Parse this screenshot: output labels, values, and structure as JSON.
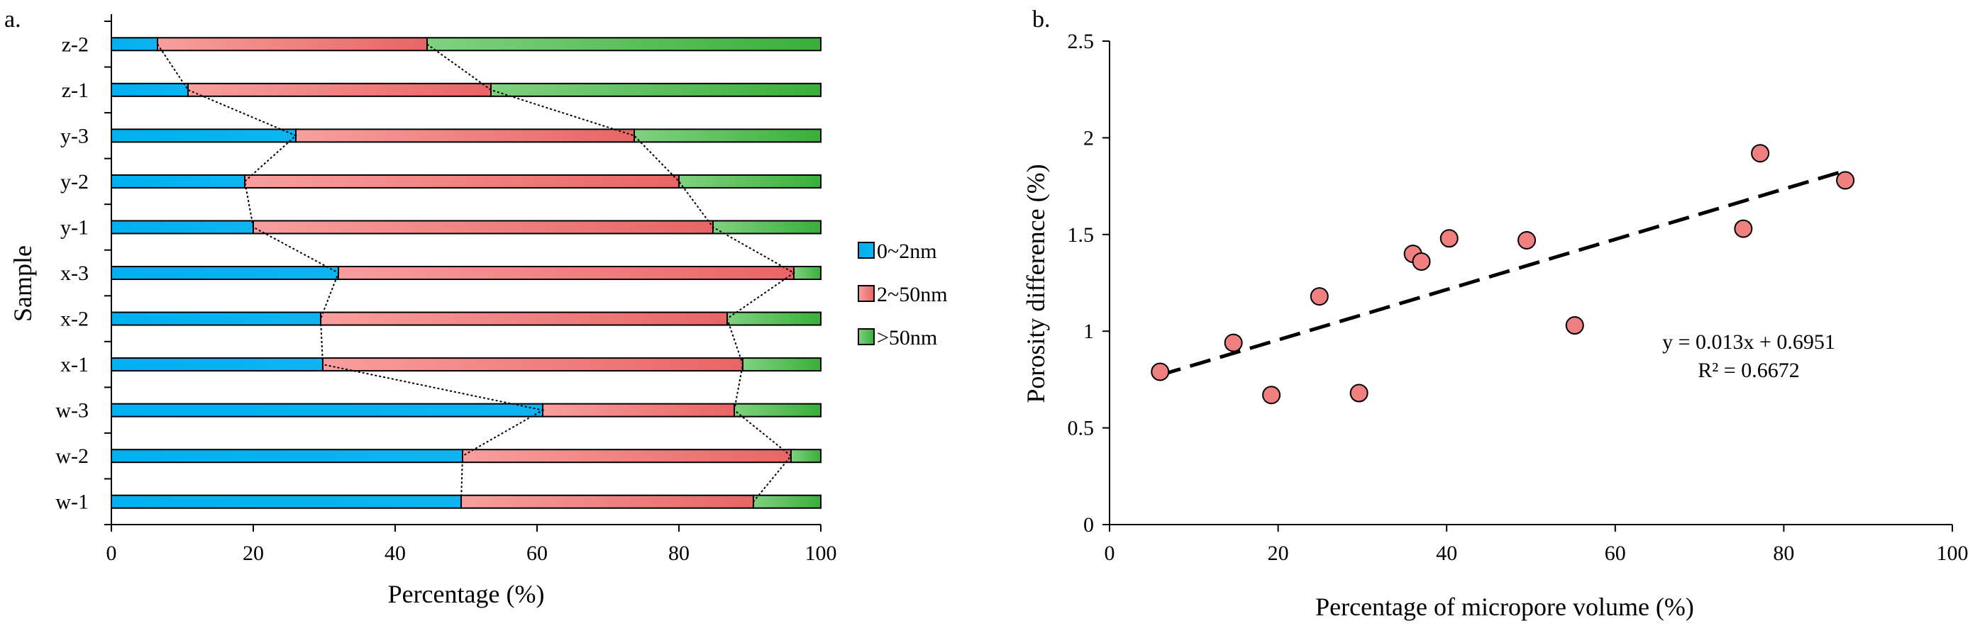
{
  "chart_data": [
    {
      "type": "bar",
      "stacked": true,
      "orientation": "horizontal",
      "panel_label": "a.",
      "title": "",
      "xlabel": "Percentage (%)",
      "ylabel": "Sample",
      "xlim": [
        0,
        100
      ],
      "xticks": [
        "0",
        "20",
        "40",
        "60",
        "80",
        "100"
      ],
      "categories": [
        "z-2",
        "z-1",
        "y-3",
        "y-2",
        "y-1",
        "x-3",
        "x-2",
        "x-1",
        "w-3",
        "w-2",
        "w-1"
      ],
      "series": [
        {
          "name": "0~2nm",
          "color": "#00b0f0",
          "values": [
            6.5,
            10.8,
            26.0,
            18.8,
            20.0,
            32.0,
            29.5,
            29.8,
            60.8,
            49.5,
            49.3
          ]
        },
        {
          "name": "2~50nm",
          "color": "#f46a6a",
          "values": [
            38.0,
            42.7,
            47.7,
            61.2,
            64.8,
            64.2,
            57.3,
            59.2,
            27.0,
            46.3,
            41.2
          ]
        },
        {
          "name": ">50nm",
          "color": "#3cb83c",
          "values": [
            55.5,
            46.5,
            26.3,
            20.0,
            15.2,
            3.8,
            13.2,
            11.0,
            12.2,
            4.2,
            9.5
          ]
        }
      ],
      "legend": {
        "position": "right",
        "entries": [
          "0~2nm",
          "2~50nm",
          ">50nm"
        ]
      },
      "connector_lines": "dotted"
    },
    {
      "type": "scatter",
      "panel_label": "b.",
      "title": "",
      "xlabel": "Percentage of micropore volume (%)",
      "ylabel": "Porosity difference (%)",
      "xlim": [
        0,
        100
      ],
      "ylim": [
        0,
        2.5
      ],
      "xticks": [
        "0",
        "20",
        "40",
        "60",
        "80",
        "100"
      ],
      "yticks": [
        "0",
        "0.5",
        "1",
        "1.5",
        "2",
        "2.5"
      ],
      "marker_color": "#f08080",
      "points": [
        {
          "x": 6,
          "y": 0.79
        },
        {
          "x": 14.7,
          "y": 0.94
        },
        {
          "x": 19.2,
          "y": 0.67
        },
        {
          "x": 24.9,
          "y": 1.18
        },
        {
          "x": 29.6,
          "y": 0.68
        },
        {
          "x": 36.0,
          "y": 1.4
        },
        {
          "x": 37.0,
          "y": 1.36
        },
        {
          "x": 40.3,
          "y": 1.48
        },
        {
          "x": 49.5,
          "y": 1.47
        },
        {
          "x": 55.2,
          "y": 1.03
        },
        {
          "x": 75.2,
          "y": 1.53
        },
        {
          "x": 77.2,
          "y": 1.92
        },
        {
          "x": 87.3,
          "y": 1.78
        }
      ],
      "trendline": {
        "slope": 0.013,
        "intercept": 0.6951,
        "x_range": [
          6,
          87
        ],
        "style": "dashed"
      },
      "equation": "y = 0.013x + 0.6951",
      "r_squared": "R² = 0.6672"
    }
  ]
}
